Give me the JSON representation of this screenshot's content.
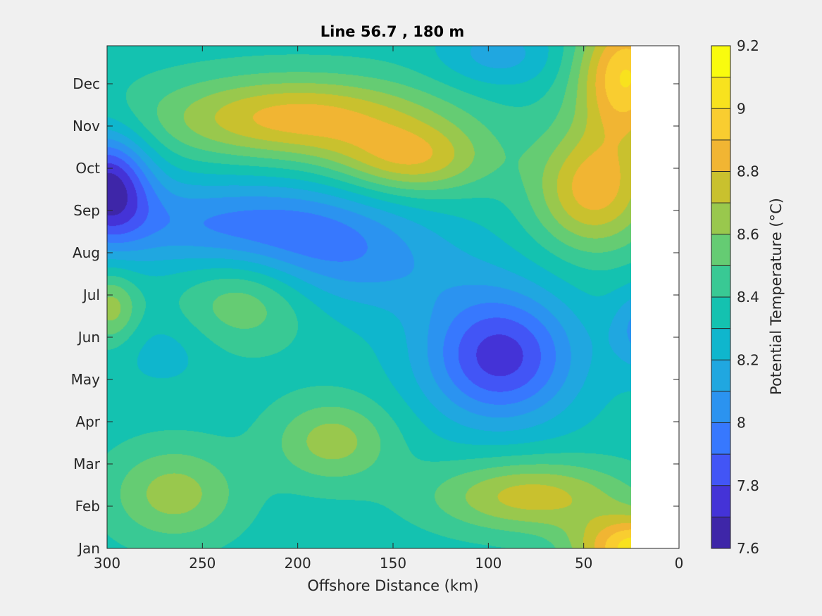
{
  "chart_data": {
    "type": "heatmap",
    "subtype": "filled-contour",
    "title": "Line 56.7 , 180 m",
    "xlabel": "Offshore Distance (km)",
    "ylabel": "",
    "xlim": [
      0,
      300
    ],
    "x_reversed": true,
    "x_ticks": [
      "300",
      "250",
      "200",
      "150",
      "100",
      "50",
      "0"
    ],
    "y_ticks": [
      "Jan",
      "Feb",
      "Mar",
      "Apr",
      "May",
      "Jun",
      "Jul",
      "Aug",
      "Sep",
      "Oct",
      "Nov",
      "Dec"
    ],
    "data_extent_km": [
      25,
      300
    ],
    "colorbar": {
      "label": "Potential Temperature (°C)",
      "range": [
        7.6,
        9.2
      ],
      "level_step": 0.1,
      "tick_labels": [
        "7.6",
        "7.8",
        "8",
        "8.2",
        "8.4",
        "8.6",
        "8.8",
        "9",
        "9.2"
      ],
      "colors": [
        "#3e26a8",
        "#4433d7",
        "#4255f6",
        "#3778fe",
        "#2b93f0",
        "#20a7e0",
        "#0fb6cd",
        "#14c2b0",
        "#39c994",
        "#65cc73",
        "#99c84d",
        "#c9c12e",
        "#f1b533",
        "#f9cd30",
        "#f8e21e",
        "#f9fb0e"
      ]
    },
    "hotspots": [
      {
        "label": "cold core",
        "x_km": 300,
        "month": 8.6,
        "value": 7.7,
        "spread_km": 16,
        "spread_months": 0.9
      },
      {
        "label": "cold band",
        "x_km": 250,
        "month": 7.7,
        "value": 8.05,
        "spread_km": 48,
        "spread_months": 0.75
      },
      {
        "label": "cold band",
        "x_km": 190,
        "month": 7.3,
        "value": 8.1,
        "spread_km": 36,
        "spread_months": 0.9
      },
      {
        "label": "cold pocket",
        "x_km": 94,
        "month": 4.55,
        "value": 7.75,
        "spread_km": 28,
        "spread_months": 1.1
      },
      {
        "label": "cold patch",
        "x_km": 95,
        "month": 11.7,
        "value": 8.15,
        "spread_km": 22,
        "spread_months": 0.55
      },
      {
        "label": "cold patch",
        "x_km": 18,
        "month": 5.2,
        "value": 8.05,
        "spread_km": 12,
        "spread_months": 0.7
      },
      {
        "label": "cold patch",
        "x_km": 150,
        "month": 6.6,
        "value": 8.2,
        "spread_km": 40,
        "spread_months": 0.9
      },
      {
        "label": "cold patch",
        "x_km": 270,
        "month": 4.7,
        "value": 8.25,
        "spread_km": 18,
        "spread_months": 0.6
      },
      {
        "label": "warm core",
        "x_km": 200,
        "month": 10.2,
        "value": 8.85,
        "spread_km": 52,
        "spread_months": 0.7
      },
      {
        "label": "warm lobe",
        "x_km": 140,
        "month": 9.2,
        "value": 8.75,
        "spread_km": 28,
        "spread_months": 0.6
      },
      {
        "label": "warm patch",
        "x_km": 228,
        "month": 5.9,
        "value": 8.6,
        "spread_km": 24,
        "spread_months": 0.8
      },
      {
        "label": "warm patch",
        "x_km": 182,
        "month": 2.55,
        "value": 8.65,
        "spread_km": 22,
        "spread_months": 0.7
      },
      {
        "label": "warm patch",
        "x_km": 265,
        "month": 1.3,
        "value": 8.65,
        "spread_km": 24,
        "spread_months": 0.8
      },
      {
        "label": "warm patch",
        "x_km": 78,
        "month": 1.25,
        "value": 8.75,
        "spread_km": 36,
        "spread_months": 0.6
      },
      {
        "label": "warm edge",
        "x_km": 22,
        "month": 0.0,
        "value": 9.05,
        "spread_km": 22,
        "spread_months": 0.55
      },
      {
        "label": "warm edge",
        "x_km": 28,
        "month": 11.2,
        "value": 9.0,
        "spread_km": 18,
        "spread_months": 1.1
      },
      {
        "label": "warm lobe",
        "x_km": 45,
        "month": 8.5,
        "value": 8.85,
        "spread_km": 22,
        "spread_months": 1.0
      },
      {
        "label": "warm patch",
        "x_km": 298,
        "month": 5.7,
        "value": 8.65,
        "spread_km": 10,
        "spread_months": 0.6
      }
    ]
  }
}
